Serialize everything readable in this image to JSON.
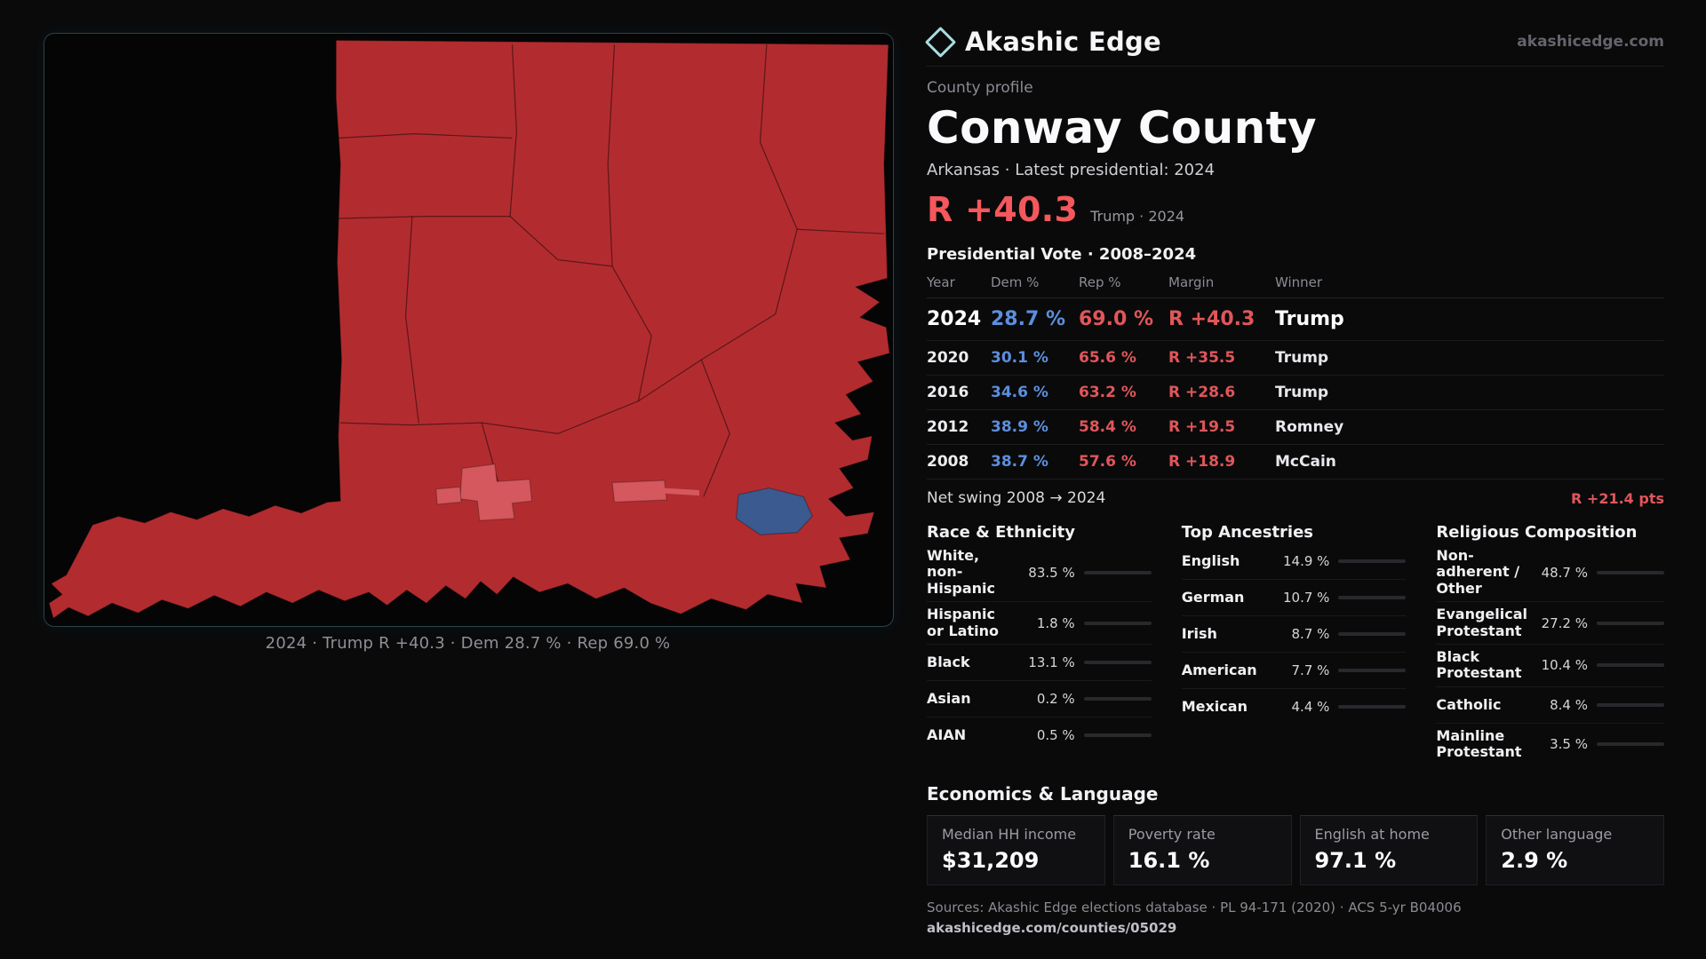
{
  "brand": {
    "name": "Akashic Edge",
    "domain": "akashicedge.com"
  },
  "profile": {
    "kicker": "County profile",
    "title": "Conway County",
    "subtitle": "Arkansas · Latest presidential: 2024",
    "headline": {
      "margin": "R +40.3",
      "note": "Trump · 2024"
    }
  },
  "map": {
    "caption": "2024 · Trump R +40.3 · Dem 28.7 % · Rep 69.0 %"
  },
  "vote_table": {
    "title": "Presidential Vote · 2008–2024",
    "columns": [
      "Year",
      "Dem %",
      "Rep %",
      "Margin",
      "Winner"
    ],
    "rows": [
      {
        "year": "2024",
        "dem": "28.7 %",
        "rep": "69.0 %",
        "margin": "R +40.3",
        "winner": "Trump"
      },
      {
        "year": "2020",
        "dem": "30.1 %",
        "rep": "65.6 %",
        "margin": "R +35.5",
        "winner": "Trump"
      },
      {
        "year": "2016",
        "dem": "34.6 %",
        "rep": "63.2 %",
        "margin": "R +28.6",
        "winner": "Trump"
      },
      {
        "year": "2012",
        "dem": "38.9 %",
        "rep": "58.4 %",
        "margin": "R +19.5",
        "winner": "Romney"
      },
      {
        "year": "2008",
        "dem": "38.7 %",
        "rep": "57.6 %",
        "margin": "R +18.9",
        "winner": "McCain"
      }
    ],
    "net_swing": {
      "label": "Net swing 2008 → 2024",
      "value": "R +21.4 pts"
    }
  },
  "race": {
    "title": "Race & Ethnicity",
    "rows": [
      {
        "label": "White, non-Hispanic",
        "display": "83.5 %",
        "value": 83.5,
        "color": "#c9c9d6"
      },
      {
        "label": "Hispanic or Latino",
        "display": "1.8 %",
        "value": 1.8,
        "color": "#e09a3c"
      },
      {
        "label": "Black",
        "display": "13.1 %",
        "value": 13.1,
        "color": "#8f7ce6"
      },
      {
        "label": "Asian",
        "display": "0.2 %",
        "value": 0.2,
        "color": "#d56a6e"
      },
      {
        "label": "AIAN",
        "display": "0.5 %",
        "value": 0.5,
        "color": "#e0b23c"
      }
    ]
  },
  "ancestries": {
    "title": "Top Ancestries",
    "rows": [
      {
        "label": "English",
        "display": "14.9 %",
        "value": 14.9,
        "color": "#b9b9c6"
      },
      {
        "label": "German",
        "display": "10.7 %",
        "value": 10.7,
        "color": "#b9b9c6"
      },
      {
        "label": "Irish",
        "display": "8.7 %",
        "value": 8.7,
        "color": "#b9b9c6"
      },
      {
        "label": "American",
        "display": "7.7 %",
        "value": 7.7,
        "color": "#b9b9c6"
      },
      {
        "label": "Mexican",
        "display": "4.4 %",
        "value": 4.4,
        "color": "#e09a3c"
      }
    ]
  },
  "religion": {
    "title": "Religious Composition",
    "rows": [
      {
        "label": "Non-adherent / Other",
        "display": "48.7 %",
        "value": 48.7,
        "color": "#a9a9b4"
      },
      {
        "label": "Evangelical Protestant",
        "display": "27.2 %",
        "value": 27.2,
        "color": "#ef686e"
      },
      {
        "label": "Black Protestant",
        "display": "10.4 %",
        "value": 10.4,
        "color": "#8f7ce6"
      },
      {
        "label": "Catholic",
        "display": "8.4 %",
        "value": 8.4,
        "color": "#e6c44f"
      },
      {
        "label": "Mainline Protestant",
        "display": "3.5 %",
        "value": 3.5,
        "color": "#79b8e8"
      }
    ]
  },
  "economics": {
    "title": "Economics & Language",
    "stats": [
      {
        "label": "Median HH income",
        "value": "$31,209"
      },
      {
        "label": "Poverty rate",
        "value": "16.1 %"
      },
      {
        "label": "English at home",
        "value": "97.1 %"
      },
      {
        "label": "Other language",
        "value": "2.9 %"
      }
    ]
  },
  "footer": {
    "sources": "Sources: Akashic Edge elections database · PL 94-171 (2020) · ACS 5-yr B04006",
    "permalink": "akashicedge.com/counties/05029"
  },
  "colors": {
    "accent_red": "#f4585c",
    "dem_blue": "#5c8fdd",
    "rep_red": "#e0565a",
    "map_red": "#b22c2f",
    "map_light_red": "#d4585e",
    "map_blue": "#3a5a90"
  }
}
